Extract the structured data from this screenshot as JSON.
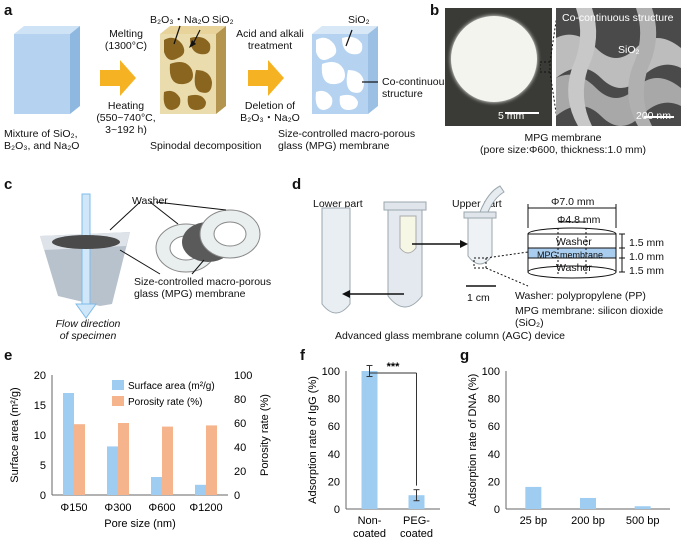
{
  "panels": {
    "a": {
      "label": "a",
      "step1_caption": [
        "Mixture of SiO₂,",
        "B₂O₃, and Na₂O"
      ],
      "arrow1_top": [
        "Melting",
        "(1300°C)"
      ],
      "arrow1_bottom": [
        "Heating",
        "(550~740°C,",
        "3~192 h)"
      ],
      "step2_formula": [
        "B₂O₃・Na₂O",
        "SiO₂"
      ],
      "step2_caption": "Spinodal decomposition",
      "arrow2_top": [
        "Acid and alkali",
        "treatment"
      ],
      "arrow2_bottom": [
        "Deletion of",
        "B₂O₃・Na₂O"
      ],
      "step3_formula": "SiO₂",
      "step3_side": [
        "Co-continuous",
        "structure"
      ],
      "step3_caption": [
        "Size-controlled macro-porous",
        "glass (MPG) membrane"
      ]
    },
    "b": {
      "label": "b",
      "scale_left": "5 mm",
      "inset_title": "Co-continuous structure",
      "inset_formula": "SiO₂",
      "scale_right": "200 nm",
      "caption": [
        "MPG membrane",
        "(pore size:Φ600, thickness:1.0 mm)"
      ]
    },
    "c": {
      "label": "c",
      "washer": "Washer",
      "membrane": [
        "Size-controlled macro-porous",
        "glass (MPG) membrane"
      ],
      "flow": [
        "Flow direction",
        "of specimen"
      ]
    },
    "d": {
      "label": "d",
      "lower": "Lower part",
      "upper": "Upper part",
      "d_outer": "Φ7.0 mm",
      "d_inner": "Φ4.8 mm",
      "layers": [
        "Washer",
        "MPG membrane",
        "Washer"
      ],
      "thick": [
        "1.5 mm",
        "1.0 mm",
        "1.5 mm"
      ],
      "scale": "1 cm",
      "note1": "Washer: polypropylene (PP)",
      "note2": "MPG membrane: silicon dioxide (SiO₂)",
      "caption": "Advanced glass membrane column (AGC) device"
    }
  },
  "colors": {
    "blue": "#9fcdf2",
    "orange": "#f5b48c",
    "brown": "#8a6520",
    "arrow": "#f5b324"
  },
  "chart_data": [
    {
      "panel": "e",
      "type": "bar",
      "categories": [
        "Φ150",
        "Φ300",
        "Φ600",
        "Φ1200"
      ],
      "xlabel": "Pore size (nm)",
      "ylabel": "Surface area (m²/g)",
      "ylabel_right": "Porosity rate (%)",
      "ylim": [
        0,
        20
      ],
      "ylim_right": [
        0,
        100
      ],
      "yticks": [
        0,
        5,
        10,
        15,
        20
      ],
      "yticks_right": [
        0,
        20,
        40,
        60,
        80,
        100
      ],
      "series": [
        {
          "name": "Surface area (m²/g)",
          "axis": "left",
          "values": [
            17.0,
            8.1,
            3.0,
            1.7
          ]
        },
        {
          "name": "Porosity rate (%)",
          "axis": "right",
          "values": [
            59,
            60,
            57,
            58
          ]
        }
      ]
    },
    {
      "panel": "f",
      "type": "bar",
      "categories": [
        "Non-\ncoated",
        "PEG-\ncoated"
      ],
      "ylabel": "Adsorption rate of IgG (%)",
      "ylim": [
        0,
        100
      ],
      "yticks": [
        0,
        20,
        40,
        60,
        80,
        100
      ],
      "values": [
        100,
        10
      ],
      "errors": [
        4,
        4
      ],
      "significance": "***"
    },
    {
      "panel": "g",
      "type": "bar",
      "categories": [
        "25 bp",
        "200 bp",
        "500 bp"
      ],
      "ylabel": "Adsorption rate of DNA (%)",
      "ylim": [
        0,
        100
      ],
      "yticks": [
        0,
        20,
        40,
        60,
        80,
        100
      ],
      "values": [
        16,
        8,
        2
      ]
    }
  ]
}
